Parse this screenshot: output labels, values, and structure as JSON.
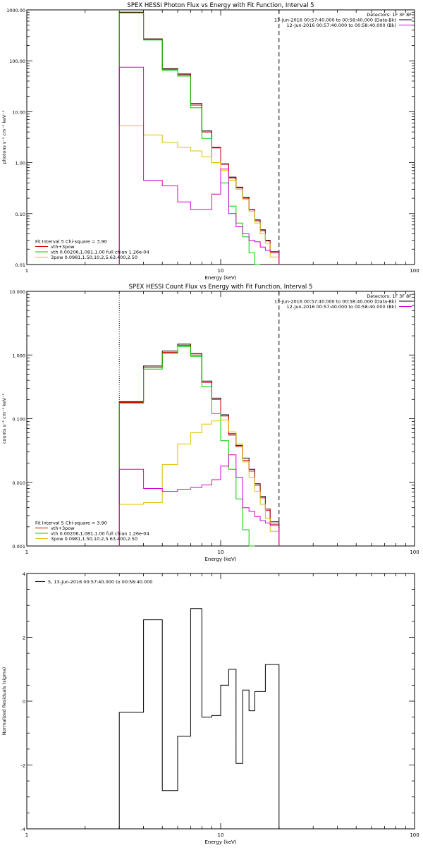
{
  "chart_data": [
    {
      "type": "line",
      "title": "SPEX HESSI Photon Flux vs Energy with Fit Function, Interval 5",
      "xlabel": "Energy (keV)",
      "ylabel": "photons s⁻¹ cm⁻² keV⁻¹",
      "xscale": "log",
      "yscale": "log",
      "xlim": [
        1,
        100
      ],
      "ylim": [
        0.01,
        1000
      ],
      "x_ticks": [
        "1",
        "10",
        "100"
      ],
      "y_ticks": [
        "0.01",
        "0.10",
        "1.00",
        "10.00",
        "100.00",
        "1000.00"
      ],
      "legend_top_right": {
        "header": "Detectors: 1F 3F 8F",
        "entries": [
          {
            "label": "13-Jun-2016 00:57:40.000 to 00:58:40.000 (Data-Bk)",
            "color": "#000000"
          },
          {
            "label": "12-Jun-2016 00:57:40.000 to 00:58:40.000 (Bk)",
            "color": "#d400d4"
          }
        ]
      },
      "legend_bottom_left": {
        "header": "Fit Interval 5   Chi-square = 3.90",
        "entries": [
          {
            "label": "vth+3pow",
            "color": "#cc0000"
          },
          {
            "label": "vth 0.00206,1.081,1.00  full chian 1.26e-04",
            "color": "#00cc00"
          },
          {
            "label": "3pow 0.0981,1.50,10.2,5.63,400,2.50",
            "color": "#e0c000"
          }
        ]
      },
      "vlines": [
        {
          "x": 3.0,
          "style": "dotted",
          "color": "#000000"
        },
        {
          "x": 3.0,
          "style": "dotted",
          "color": "#e0c000"
        },
        {
          "x": 20.0,
          "style": "dashed",
          "color": "#000000"
        }
      ],
      "edges": [
        3.0,
        4.0,
        5.0,
        6.0,
        7.0,
        8.0,
        9.0,
        10.0,
        11.0,
        12.0,
        13.0,
        14.0,
        15.0,
        16.0,
        17.0,
        18.0,
        20.0
      ],
      "series": [
        {
          "name": "Data-Bk",
          "color": "#000000",
          "values": [
            900,
            270,
            70,
            55,
            14.5,
            4.2,
            2.0,
            0.95,
            0.52,
            0.33,
            0.21,
            0.12,
            0.075,
            0.048,
            0.03,
            0.018
          ]
        },
        {
          "name": "vth+3pow",
          "color": "#cc0000",
          "values": [
            880,
            265,
            68,
            53,
            13.5,
            4.0,
            1.95,
            0.93,
            0.5,
            0.32,
            0.2,
            0.118,
            0.072,
            0.046,
            0.029,
            0.017
          ]
        },
        {
          "name": "vth",
          "color": "#00cc00",
          "values": [
            870,
            255,
            65,
            50,
            12,
            3.0,
            1.0,
            0.4,
            0.14,
            0.065,
            0.035,
            0.017,
            0.0
          ]
        },
        {
          "name": "3pow",
          "color": "#e0c000",
          "values": [
            5.3,
            3.5,
            2.5,
            2.0,
            1.7,
            1.3,
            1.0,
            0.7,
            0.45,
            0.3,
            0.19,
            0.11,
            0.065,
            0.04,
            0.026,
            0.014
          ]
        },
        {
          "name": "Bk",
          "color": "#d400d4",
          "values": [
            75,
            0.45,
            0.35,
            0.17,
            0.12,
            0.12,
            0.24,
            0.75,
            0.1,
            0.055,
            0.04,
            0.03,
            0.028,
            0.022,
            0.019,
            0.018
          ]
        }
      ]
    },
    {
      "type": "line",
      "title": "SPEX HESSI Count Flux vs Energy with Fit Function, Interval 5",
      "xlabel": "Energy (keV)",
      "ylabel": "counts s⁻¹ cm⁻² keV⁻¹",
      "xscale": "log",
      "yscale": "log",
      "xlim": [
        1,
        100
      ],
      "ylim": [
        0.001,
        10
      ],
      "x_ticks": [
        "1",
        "10",
        "100"
      ],
      "y_ticks": [
        "0.001",
        "0.010",
        "0.100",
        "1.000",
        "10.000"
      ],
      "legend_top_right": {
        "header": "Detectors: 1F 3F 8F",
        "entries": [
          {
            "label": "13-Jun-2016 00:57:40.000 to 00:58:40.000 (Data-Bk)",
            "color": "#000000"
          },
          {
            "label": "12-Jun-2016 00:57:40.000 to 00:58:40.000 (Bk)",
            "color": "#d400d4"
          }
        ]
      },
      "legend_bottom_left": {
        "header": "Fit Interval 5   Chi-square = 3.90",
        "entries": [
          {
            "label": "vth+3pow",
            "color": "#cc0000"
          },
          {
            "label": "vth 0.00206,1.081,1.00  full chian 1.26e-04",
            "color": "#00cc00"
          },
          {
            "label": "3pow 0.0981,1.50,10.2,5.63,400,2.50",
            "color": "#e0c000"
          }
        ]
      },
      "vlines": [
        {
          "x": 3.0,
          "style": "dotted",
          "color": "#000000"
        },
        {
          "x": 20.0,
          "style": "dashed",
          "color": "#000000"
        }
      ],
      "edges": [
        3.0,
        4.0,
        5.0,
        6.0,
        7.0,
        8.0,
        9.0,
        10.0,
        11.0,
        12.0,
        13.0,
        14.0,
        15.0,
        16.0,
        17.0,
        18.0,
        20.0
      ],
      "series": [
        {
          "name": "Data-Bk",
          "color": "#000000",
          "values": [
            0.185,
            0.67,
            1.15,
            1.48,
            1.05,
            0.39,
            0.21,
            0.115,
            0.058,
            0.038,
            0.024,
            0.016,
            0.0095,
            0.006,
            0.0038,
            0.0024
          ]
        },
        {
          "name": "vth+3pow",
          "color": "#cc0000",
          "values": [
            0.18,
            0.64,
            1.1,
            1.42,
            1.0,
            0.37,
            0.2,
            0.11,
            0.055,
            0.036,
            0.022,
            0.015,
            0.009,
            0.0057,
            0.0036,
            0.0022
          ]
        },
        {
          "name": "vth",
          "color": "#00cc00",
          "values": [
            0.175,
            0.6,
            1.05,
            1.35,
            0.95,
            0.32,
            0.12,
            0.045,
            0.016,
            0.0055,
            0.0018,
            0.0
          ]
        },
        {
          "name": "3pow",
          "color": "#e0c000",
          "values": [
            0.0045,
            0.0048,
            0.019,
            0.04,
            0.06,
            0.082,
            0.092,
            0.095,
            0.062,
            0.04,
            0.021,
            0.012,
            0.0072,
            0.0045,
            0.0027,
            0.0017
          ]
        },
        {
          "name": "Bk",
          "color": "#d400d4",
          "values": [
            0.016,
            0.008,
            0.0072,
            0.0078,
            0.0083,
            0.0091,
            0.011,
            0.018,
            0.027,
            0.012,
            0.004,
            0.0035,
            0.0029,
            0.0025,
            0.0023,
            0.0021
          ]
        }
      ]
    },
    {
      "type": "line",
      "title": "",
      "xlabel": "Energy (keV)",
      "ylabel": "Normalized Residuals (sigma)",
      "xscale": "log",
      "yscale": "linear",
      "xlim": [
        1,
        100
      ],
      "ylim": [
        -4,
        4
      ],
      "x_ticks": [
        "1",
        "10",
        "100"
      ],
      "y_ticks": [
        "-4",
        "-2",
        "0",
        "2",
        "4"
      ],
      "legend_top_left": {
        "entries": [
          {
            "label": "5, 13-Jun-2016 00:57:40.000 to 00:58:40.000",
            "color": "#000000"
          }
        ]
      },
      "edges": [
        3.0,
        4.0,
        5.0,
        6.0,
        7.0,
        8.0,
        9.0,
        10.0,
        11.0,
        12.0,
        13.0,
        14.0,
        15.0,
        16.0,
        17.0,
        18.0,
        20.0
      ],
      "series": [
        {
          "name": "5, 13-Jun-2016 00:57:40.000 to 00:58:40.000",
          "color": "#000000",
          "values": [
            -0.35,
            2.55,
            -2.8,
            -1.1,
            2.9,
            -0.5,
            -0.45,
            0.5,
            1.0,
            -1.95,
            0.35,
            -0.3,
            0.3,
            0.3,
            1.15,
            1.15
          ]
        }
      ]
    }
  ]
}
